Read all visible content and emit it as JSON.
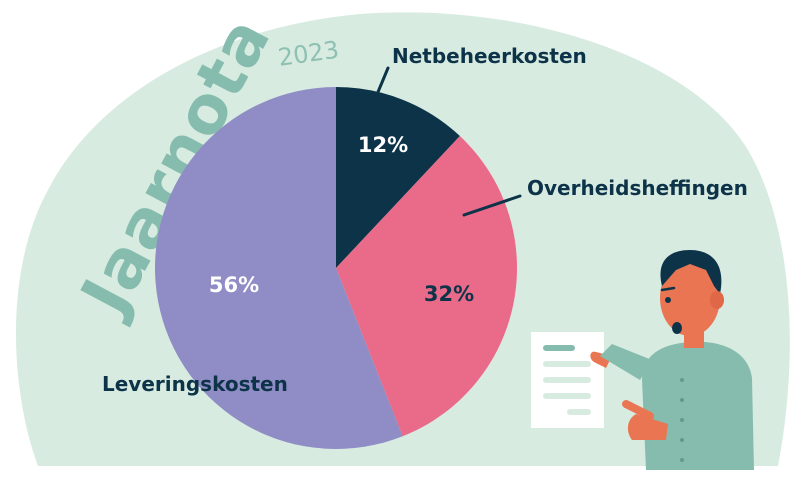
{
  "heading": {
    "title": "Jaarnota",
    "year": "2023"
  },
  "chart_data": {
    "type": "pie",
    "title": "",
    "slices": [
      {
        "label": "Netbeheerkosten",
        "value": 12,
        "value_label": "12%",
        "color": "#0d3349"
      },
      {
        "label": "Overheidsheffingen",
        "value": 32,
        "value_label": "32%",
        "color": "#ea6a89"
      },
      {
        "label": "Leveringskosten",
        "value": 56,
        "value_label": "56%",
        "color": "#8f8cc6"
      }
    ],
    "start": "12 o'clock",
    "direction": "clockwise"
  },
  "colors": {
    "background_blob": "#d7ebe1",
    "title": "#86bcae",
    "label_text": "#0d3349",
    "person_skin": "#ea7552",
    "person_shirt": "#86bcae",
    "person_hair": "#0d3349"
  },
  "illustration": {
    "person": "person-pointing-icon",
    "document": "document-icon"
  }
}
